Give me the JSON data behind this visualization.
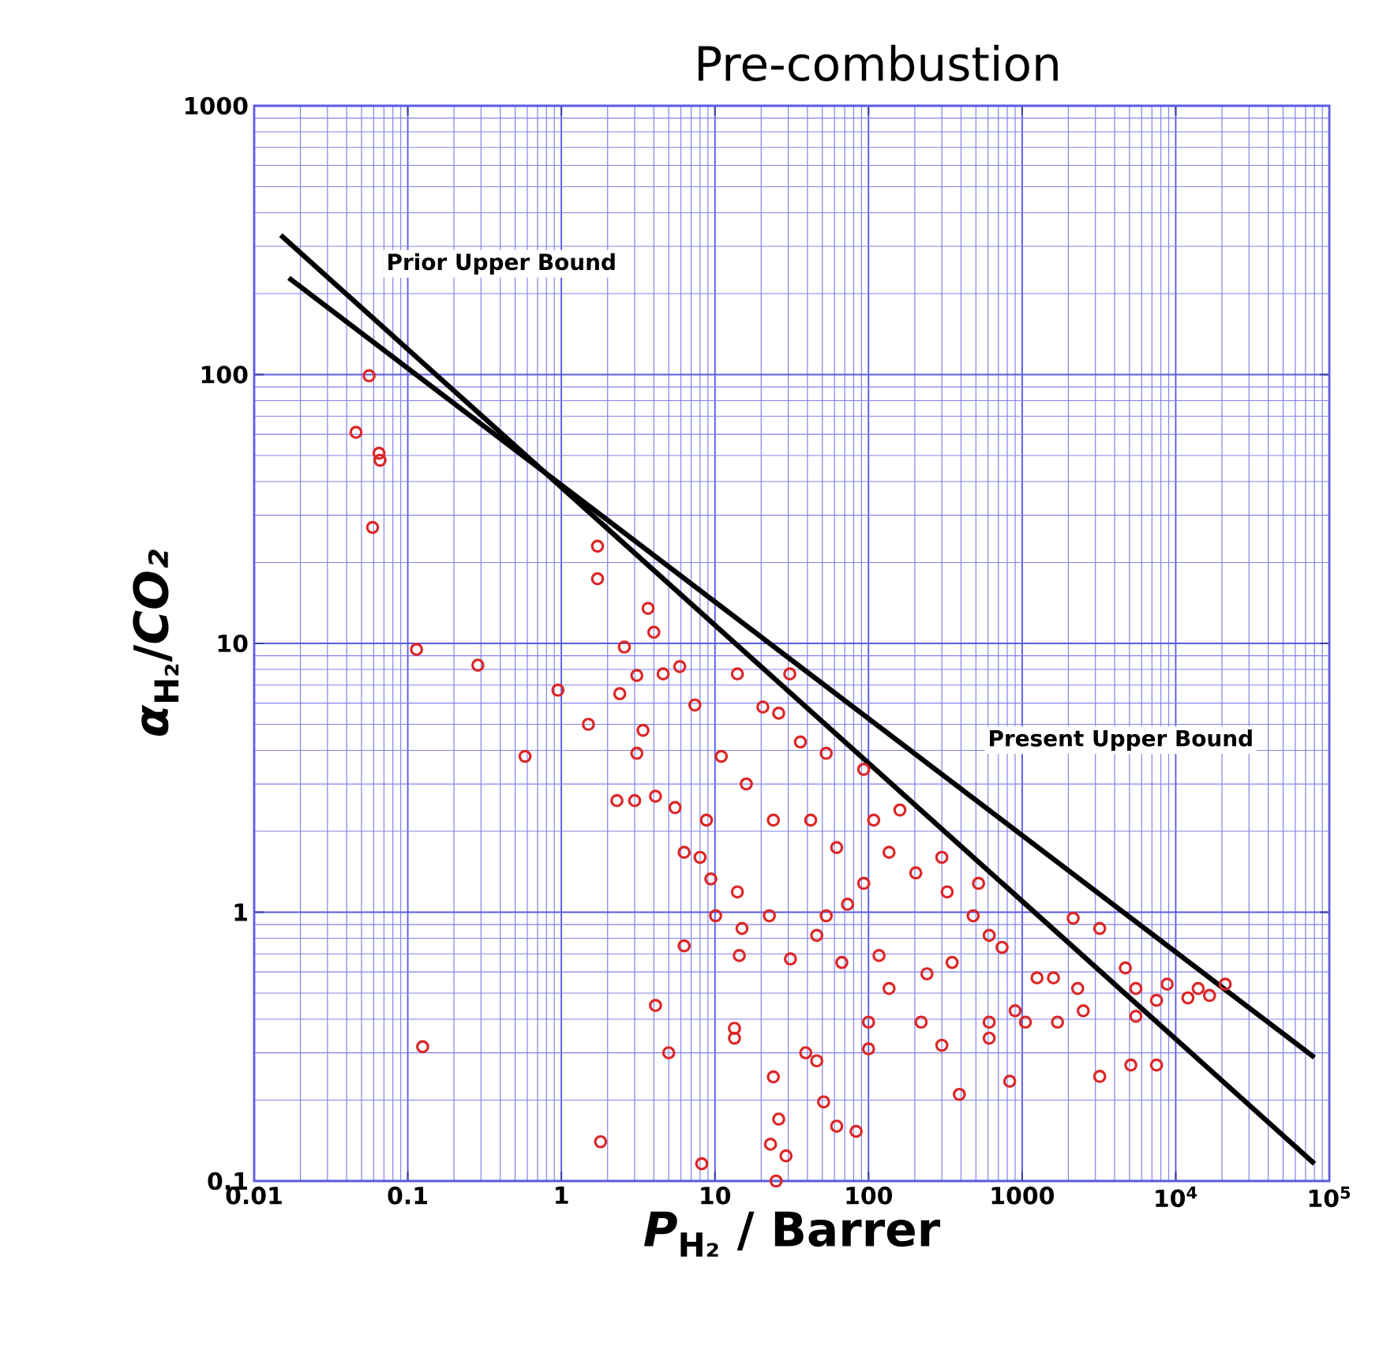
{
  "chart_data": {
    "type": "scatter",
    "title": "Pre-combustion",
    "xlabel": "*P*$_{H₂}$ / Barrer",
    "ylabel": "*α*$_{H₂}$/*CO₂*",
    "log": "xy",
    "grid": true,
    "xlim": [
      0.01,
      100000
    ],
    "ylim": [
      0.1,
      1000
    ],
    "xticks": [
      0.01,
      0.1,
      1,
      10,
      100,
      1000,
      {
        "value": 10000,
        "label": "10$^{4}$"
      },
      {
        "value": 100000,
        "label": "10$^{5}$"
      }
    ],
    "yticks": [
      0.1,
      1,
      10,
      100,
      1000
    ],
    "annotations": [
      "Prior Upper Bound",
      "Present Upper Bound"
    ],
    "series": [
      {
        "marker": "circle",
        "color": "#dd2626",
        "x": [
          0.056,
          0.046,
          0.066,
          0.065,
          0.059,
          1.72,
          1.72,
          3.67,
          4.0,
          0.114,
          2.57,
          0.286,
          0.95,
          1.5,
          0.58,
          0.125,
          1.8,
          8.2,
          6.3,
          4.1,
          5.0,
          13.4,
          13.4,
          2.4,
          2.3,
          3.0,
          4.1,
          3.1,
          3.4,
          3.1,
          4.6,
          5.9,
          5.5,
          10.1,
          15,
          14.4,
          22.6,
          24,
          26,
          23,
          25,
          8,
          9.4,
          14,
          14,
          20.5,
          7.4,
          6.3,
          16,
          11,
          24,
          8.8,
          30.7,
          26,
          42,
          62,
          108,
          136,
          93,
          53,
          73,
          203,
          300,
          325,
          520,
          480,
          160,
          93,
          53,
          36,
          31,
          46,
          67,
          136,
          117,
          240,
          350,
          610,
          740,
          1250,
          1600,
          2150,
          3200,
          2300,
          4700,
          5500,
          7500,
          8800,
          14000,
          16600,
          21000,
          12000,
          900,
          610,
          1050,
          1700,
          2500,
          5500,
          220,
          300,
          610,
          100,
          100,
          46,
          39,
          3200,
          5100,
          7500,
          390,
          830,
          51,
          62,
          83,
          29
        ],
        "values": [
          99,
          61,
          48,
          51,
          27,
          23,
          17.4,
          13.5,
          11,
          9.5,
          9.7,
          8.3,
          6.7,
          5.0,
          3.8,
          0.316,
          0.14,
          0.116,
          0.75,
          0.45,
          0.3,
          0.37,
          0.34,
          6.5,
          2.6,
          2.6,
          2.7,
          3.9,
          4.75,
          7.6,
          7.7,
          8.2,
          2.45,
          0.97,
          0.87,
          0.69,
          0.97,
          0.244,
          0.17,
          0.137,
          0.1,
          1.6,
          1.33,
          1.19,
          7.7,
          5.8,
          5.9,
          1.67,
          3.0,
          3.8,
          2.2,
          2.2,
          7.7,
          5.5,
          2.2,
          1.74,
          2.2,
          1.67,
          1.28,
          0.97,
          1.07,
          1.4,
          1.6,
          1.19,
          1.28,
          0.97,
          2.4,
          3.4,
          3.9,
          4.3,
          0.67,
          0.82,
          0.65,
          0.52,
          0.69,
          0.59,
          0.65,
          0.82,
          0.74,
          0.57,
          0.57,
          0.95,
          0.87,
          0.52,
          0.62,
          0.52,
          0.47,
          0.54,
          0.52,
          0.49,
          0.54,
          0.48,
          0.43,
          0.39,
          0.39,
          0.39,
          0.43,
          0.41,
          0.39,
          0.32,
          0.34,
          0.39,
          0.31,
          0.28,
          0.3,
          0.245,
          0.27,
          0.27,
          0.21,
          0.235,
          0.197,
          0.16,
          0.153,
          0.124
        ]
      },
      {
        "type": "line",
        "color": "#000000",
        "x": [
          0.0149,
          80000
        ],
        "values": [
          330,
          0.116
        ]
      },
      {
        "type": "line",
        "color": "#000000",
        "x": [
          0.0168,
          80000
        ],
        "values": [
          229,
          0.288
        ]
      }
    ]
  }
}
